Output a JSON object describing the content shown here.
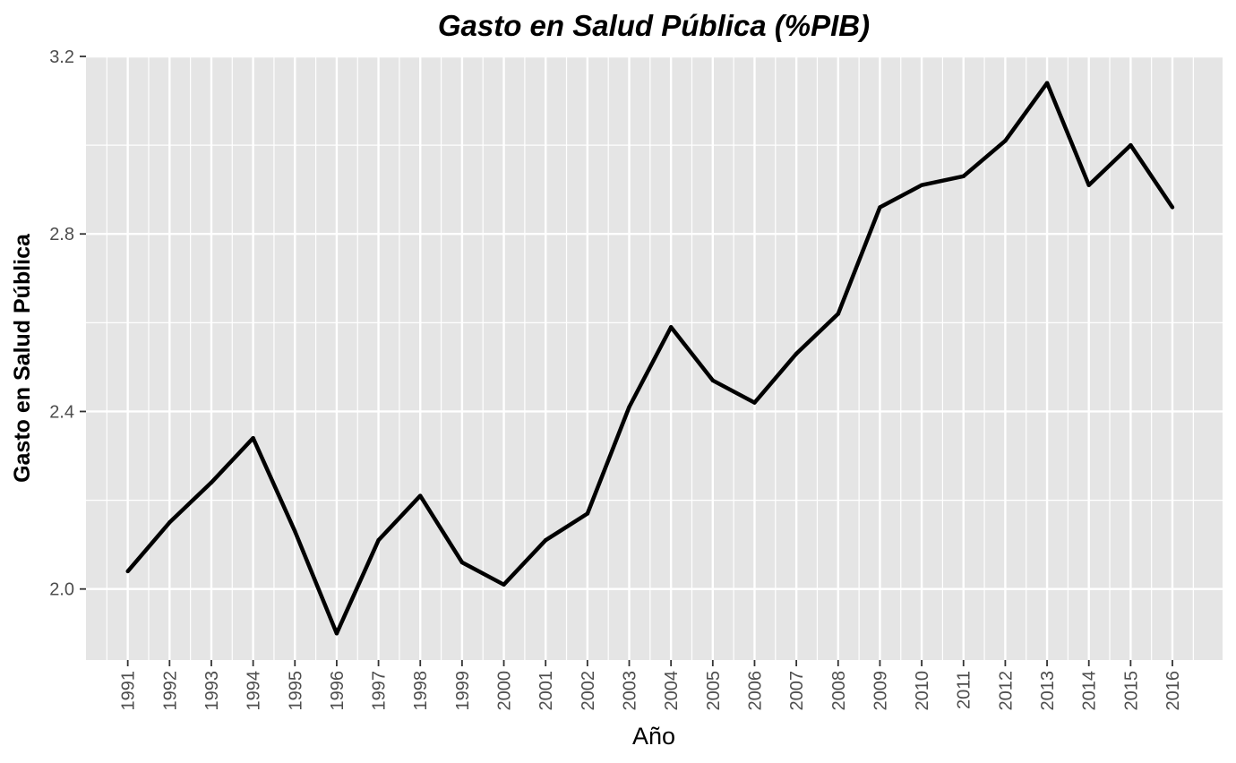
{
  "chart_data": {
    "type": "line",
    "title": "Gasto en Salud Pública (%PIB)",
    "xlabel": "Año",
    "ylabel": "Gasto en Salud Pública",
    "x": [
      1991,
      1992,
      1993,
      1994,
      1995,
      1996,
      1997,
      1998,
      1999,
      2000,
      2001,
      2002,
      2003,
      2004,
      2005,
      2006,
      2007,
      2008,
      2009,
      2010,
      2011,
      2012,
      2013,
      2014,
      2015,
      2016
    ],
    "y": [
      2.04,
      2.15,
      2.24,
      2.34,
      2.13,
      1.9,
      2.11,
      2.21,
      2.06,
      2.01,
      2.11,
      2.17,
      2.41,
      2.59,
      2.47,
      2.42,
      2.53,
      2.62,
      2.86,
      2.91,
      2.93,
      3.01,
      3.14,
      2.91,
      3.0,
      2.86
    ],
    "x_tick_labels": [
      "1991",
      "1992",
      "1993",
      "1994",
      "1995",
      "1996",
      "1997",
      "1998",
      "1999",
      "2000",
      "2001",
      "2002",
      "2003",
      "2004",
      "2005",
      "2006",
      "2007",
      "2008",
      "2009",
      "2010",
      "2011",
      "2012",
      "2013",
      "2014",
      "2015",
      "2016"
    ],
    "y_ticks": [
      2.0,
      2.4,
      2.8,
      3.2
    ],
    "y_tick_labels": [
      "2.0",
      "2.4",
      "2.8",
      "3.2"
    ],
    "xlim": [
      1990,
      2017.2
    ],
    "ylim": [
      1.84,
      3.2
    ],
    "grid": true,
    "colors": {
      "panel": "#e5e5e5",
      "grid": "#ffffff",
      "line": "#000000",
      "tick_text": "#4d4d4d"
    }
  }
}
